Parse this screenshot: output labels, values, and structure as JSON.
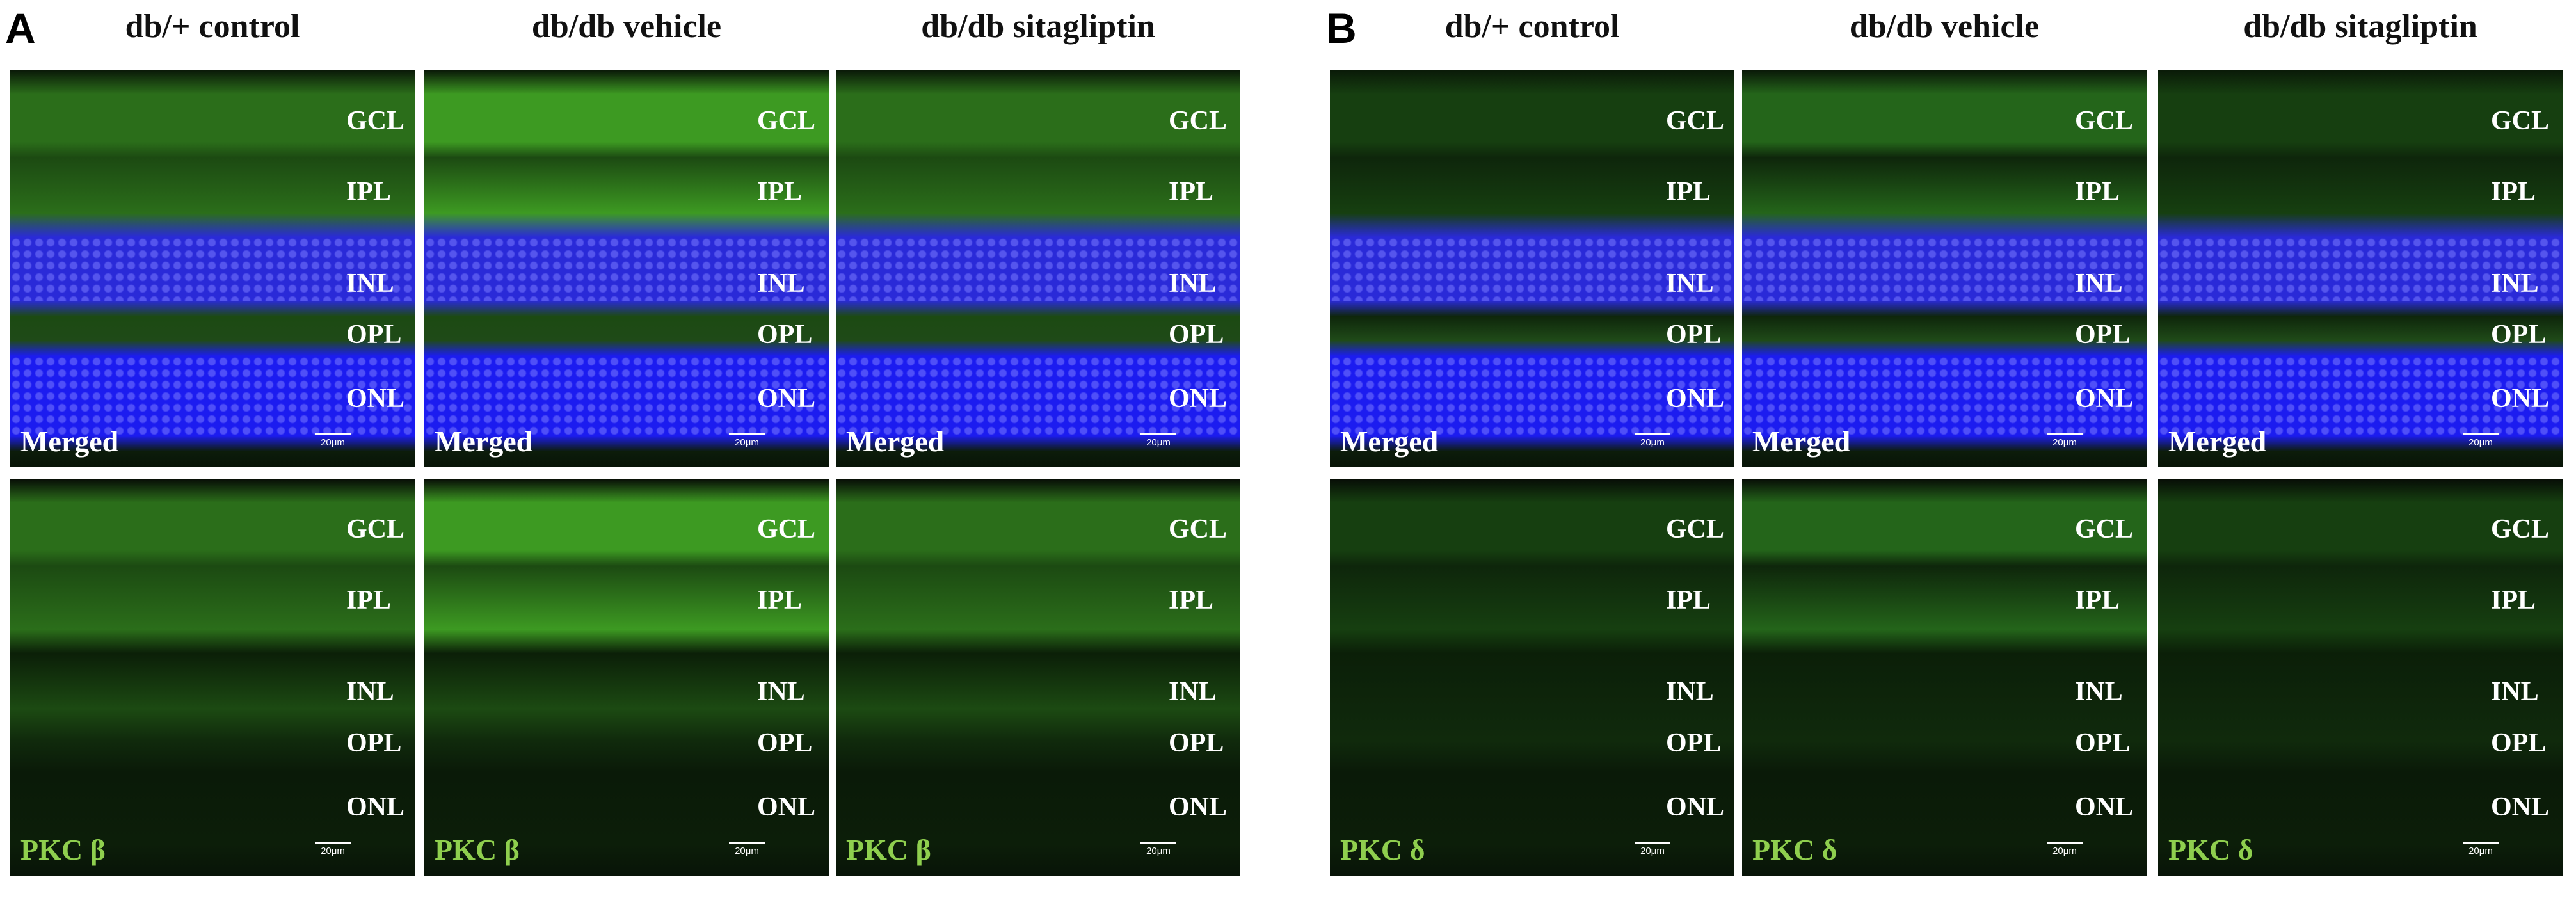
{
  "sections": [
    {
      "letter": "A",
      "columns": [
        "db/+ control",
        "db/db vehicle",
        "db/db sitagliptin"
      ],
      "rows": [
        {
          "label": "Merged",
          "stain_style": "merged"
        },
        {
          "label": "PKC β",
          "stain_style": "single"
        }
      ],
      "layers": [
        "GCL",
        "IPL",
        "INL",
        "OPL",
        "ONL"
      ],
      "scale_bar": "20μm"
    },
    {
      "letter": "B",
      "columns": [
        "db/+ control",
        "db/db vehicle",
        "db/db sitagliptin"
      ],
      "rows": [
        {
          "label": "Merged",
          "stain_style": "merged"
        },
        {
          "label": "PKC δ",
          "stain_style": "single"
        }
      ],
      "layers": [
        "GCL",
        "IPL",
        "INL",
        "OPL",
        "ONL"
      ],
      "scale_bar": "20μm"
    }
  ],
  "colors": {
    "stain_label": "#8fcf4e",
    "pkc_beta_green": "#2f7a1c",
    "pkc_delta_green": "#1a4d12",
    "nuclei_blue": "#1a1aff"
  }
}
